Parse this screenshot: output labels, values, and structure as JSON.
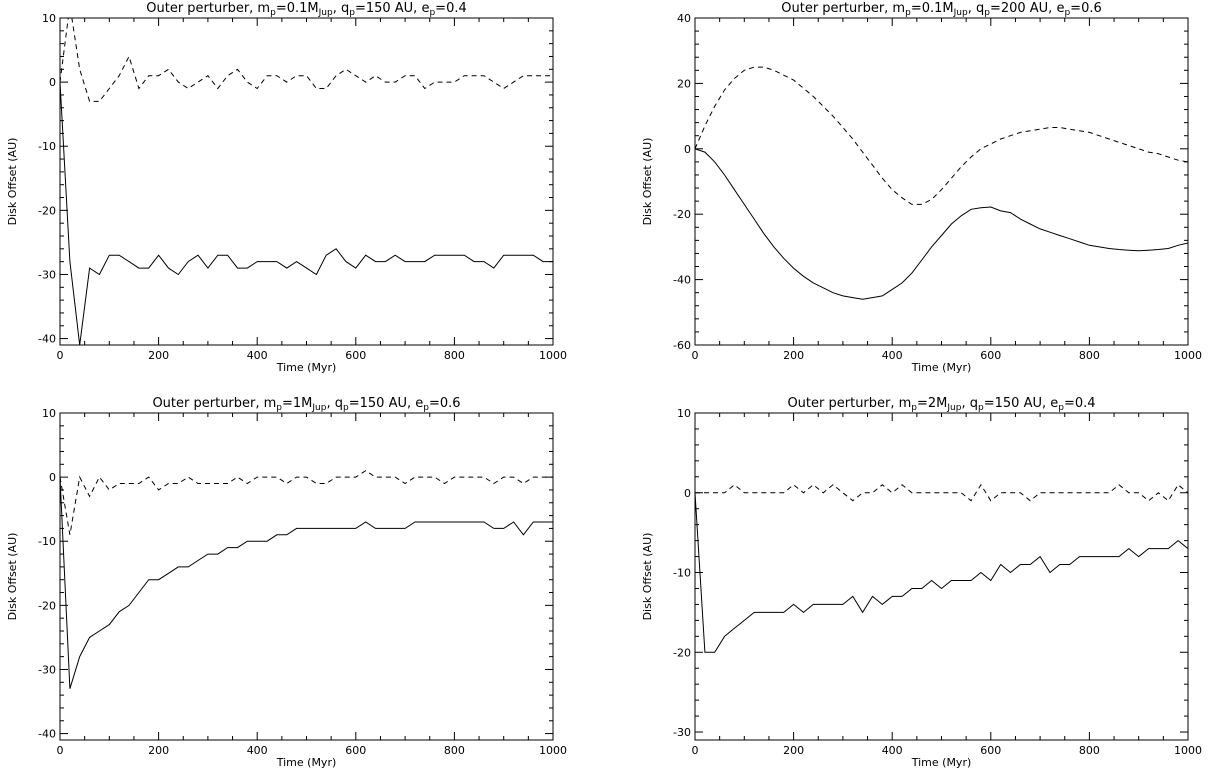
{
  "chart_data": [
    {
      "type": "line",
      "title": "Outer perturber, m_p=0.1M_Jup, q_p=150 AU, e_p=0.4",
      "title_parts": {
        "a": "Outer perturber, m",
        "b": "p",
        "c": "=0.1M",
        "d": "Jup",
        "e": ", q",
        "f": "p",
        "g": "=150 AU, e",
        "h": "p",
        "i": "=0.4"
      },
      "xlabel": "Time (Myr)",
      "ylabel": "Disk Offset (AU)",
      "xlim": [
        0,
        1000
      ],
      "ylim": [
        -41,
        10
      ],
      "xticks": [
        0,
        200,
        400,
        600,
        800,
        1000
      ],
      "yticks": [
        -40,
        -30,
        -20,
        -10,
        0,
        10
      ],
      "series": [
        {
          "style": "solid",
          "x": [
            0,
            20,
            40,
            60,
            80,
            100,
            120,
            140,
            160,
            180,
            200,
            220,
            240,
            260,
            280,
            300,
            320,
            340,
            360,
            380,
            400,
            420,
            440,
            460,
            480,
            500,
            520,
            540,
            560,
            580,
            600,
            620,
            640,
            660,
            680,
            700,
            720,
            740,
            760,
            780,
            800,
            820,
            840,
            860,
            880,
            900,
            920,
            940,
            960,
            980,
            1000
          ],
          "y": [
            0,
            -28,
            -41,
            -29,
            -30,
            -27,
            -27,
            -28,
            -29,
            -29,
            -27,
            -29,
            -30,
            -28,
            -27,
            -29,
            -27,
            -27,
            -29,
            -29,
            -28,
            -28,
            -28,
            -29,
            -28,
            -29,
            -30,
            -27,
            -26,
            -28,
            -29,
            -27,
            -28,
            -28,
            -27,
            -28,
            -28,
            -28,
            -27,
            -27,
            -27,
            -27,
            -28,
            -28,
            -29,
            -27,
            -27,
            -27,
            -27,
            -28,
            -28
          ]
        },
        {
          "style": "dashed",
          "x": [
            0,
            20,
            40,
            60,
            80,
            100,
            120,
            140,
            160,
            180,
            200,
            220,
            240,
            260,
            280,
            300,
            320,
            340,
            360,
            380,
            400,
            420,
            440,
            460,
            480,
            500,
            520,
            540,
            560,
            580,
            600,
            620,
            640,
            660,
            680,
            700,
            720,
            740,
            760,
            780,
            800,
            820,
            840,
            860,
            880,
            900,
            920,
            940,
            960,
            980,
            1000
          ],
          "y": [
            0,
            12,
            2,
            -3,
            -3,
            -1,
            1,
            4,
            -1,
            1,
            1,
            2,
            0,
            -1,
            0,
            1,
            -1,
            1,
            2,
            0,
            -1,
            1,
            1,
            0,
            1,
            1,
            -1,
            -1,
            1,
            2,
            1,
            0,
            1,
            0,
            0,
            1,
            1,
            -1,
            0,
            0,
            0,
            1,
            1,
            1,
            0,
            -1,
            0,
            1,
            1,
            1,
            1
          ]
        }
      ]
    },
    {
      "type": "line",
      "title": "Outer perturber, m_p=0.1M_Jup, q_p=200 AU, e_p=0.6",
      "title_parts": {
        "a": "Outer perturber, m",
        "b": "p",
        "c": "=0.1M",
        "d": "Jup",
        "e": ", q",
        "f": "p",
        "g": "=200 AU, e",
        "h": "p",
        "i": "=0.6"
      },
      "xlabel": "Time (Myr)",
      "ylabel": "Disk Offset (AU)",
      "xlim": [
        0,
        1000
      ],
      "ylim": [
        -60,
        40
      ],
      "xticks": [
        0,
        200,
        400,
        600,
        800,
        1000
      ],
      "yticks": [
        -60,
        -40,
        -20,
        0,
        20,
        40
      ],
      "series": [
        {
          "style": "solid",
          "x": [
            0,
            20,
            40,
            60,
            80,
            100,
            120,
            140,
            160,
            180,
            200,
            220,
            240,
            260,
            280,
            300,
            320,
            340,
            360,
            380,
            400,
            420,
            440,
            460,
            480,
            500,
            520,
            540,
            560,
            580,
            600,
            620,
            640,
            660,
            680,
            700,
            720,
            740,
            760,
            780,
            800,
            820,
            840,
            860,
            880,
            900,
            920,
            940,
            960,
            980,
            1000
          ],
          "y": [
            0,
            -1,
            -4,
            -8,
            -12.5,
            -17,
            -21.5,
            -26,
            -30,
            -33.5,
            -36.5,
            -39,
            -41,
            -42.5,
            -44,
            -45,
            -45.5,
            -46,
            -45.5,
            -45,
            -43,
            -41,
            -38,
            -34,
            -30,
            -26.5,
            -23,
            -20.5,
            -18.5,
            -18,
            -17.8,
            -19,
            -19.5,
            -21.5,
            -23,
            -24.5,
            -25.5,
            -26.5,
            -27.5,
            -28.5,
            -29.5,
            -30,
            -30.5,
            -30.8,
            -31,
            -31.2,
            -31,
            -30.8,
            -30.5,
            -29.5,
            -28.8
          ]
        },
        {
          "style": "dashed",
          "x": [
            0,
            20,
            40,
            60,
            80,
            100,
            120,
            140,
            160,
            180,
            200,
            220,
            240,
            260,
            280,
            300,
            320,
            340,
            360,
            380,
            400,
            420,
            440,
            460,
            480,
            500,
            520,
            540,
            560,
            580,
            600,
            620,
            640,
            660,
            680,
            700,
            720,
            740,
            760,
            780,
            800,
            820,
            840,
            860,
            880,
            900,
            920,
            940,
            960,
            980,
            1000
          ],
          "y": [
            0,
            7,
            13,
            18,
            21.5,
            24,
            25,
            25,
            24,
            22.5,
            21,
            18.5,
            16,
            13,
            10,
            6.5,
            3,
            -1,
            -5,
            -9,
            -12.5,
            -15,
            -17,
            -17,
            -15.5,
            -12.5,
            -9,
            -5.5,
            -2.5,
            0,
            1.5,
            3,
            4,
            5,
            5.5,
            6,
            6.5,
            6.5,
            6,
            5.5,
            5,
            4,
            3,
            2,
            1,
            0,
            -1,
            -1.5,
            -2.5,
            -3.5,
            -4
          ]
        }
      ]
    },
    {
      "type": "line",
      "title": "Outer perturber, m_p=1M_Jup, q_p=150 AU, e_p=0.6",
      "title_parts": {
        "a": "Outer perturber, m",
        "b": "p",
        "c": "=1M",
        "d": "Jup",
        "e": ", q",
        "f": "p",
        "g": "=150 AU, e",
        "h": "p",
        "i": "=0.6"
      },
      "xlabel": "Time (Myr)",
      "ylabel": "Disk Offset (AU)",
      "xlim": [
        0,
        1000
      ],
      "ylim": [
        -41,
        10
      ],
      "xticks": [
        0,
        200,
        400,
        600,
        800,
        1000
      ],
      "yticks": [
        -40,
        -30,
        -20,
        -10,
        0,
        10
      ],
      "series": [
        {
          "style": "solid",
          "x": [
            0,
            20,
            40,
            60,
            80,
            100,
            120,
            140,
            160,
            180,
            200,
            220,
            240,
            260,
            280,
            300,
            320,
            340,
            360,
            380,
            400,
            420,
            440,
            460,
            480,
            500,
            520,
            540,
            560,
            580,
            600,
            620,
            640,
            660,
            680,
            700,
            720,
            740,
            760,
            780,
            800,
            820,
            840,
            860,
            880,
            900,
            920,
            940,
            960,
            980,
            1000
          ],
          "y": [
            0,
            -33,
            -28,
            -25,
            -24,
            -23,
            -21,
            -20,
            -18,
            -16,
            -16,
            -15,
            -14,
            -14,
            -13,
            -12,
            -12,
            -11,
            -11,
            -10,
            -10,
            -10,
            -9,
            -9,
            -8,
            -8,
            -8,
            -8,
            -8,
            -8,
            -8,
            -7,
            -8,
            -8,
            -8,
            -8,
            -7,
            -7,
            -7,
            -7,
            -7,
            -7,
            -7,
            -7,
            -8,
            -8,
            -7,
            -9,
            -7,
            -7,
            -7
          ]
        },
        {
          "style": "dashed",
          "x": [
            0,
            20,
            40,
            60,
            80,
            100,
            120,
            140,
            160,
            180,
            200,
            220,
            240,
            260,
            280,
            300,
            320,
            340,
            360,
            380,
            400,
            420,
            440,
            460,
            480,
            500,
            520,
            540,
            560,
            580,
            600,
            620,
            640,
            660,
            680,
            700,
            720,
            740,
            760,
            780,
            800,
            820,
            840,
            860,
            880,
            900,
            920,
            940,
            960,
            980,
            1000
          ],
          "y": [
            0,
            -9,
            0,
            -3,
            0,
            -2,
            -1,
            -1,
            -1,
            0,
            -2,
            -1,
            -1,
            0,
            -1,
            -1,
            -1,
            -1,
            0,
            -1,
            0,
            0,
            0,
            -1,
            0,
            0,
            -1,
            -1,
            0,
            0,
            0,
            1,
            0,
            0,
            0,
            -1,
            0,
            0,
            0,
            -1,
            0,
            0,
            0,
            0,
            -1,
            0,
            0,
            -1,
            0,
            0,
            0
          ]
        }
      ]
    },
    {
      "type": "line",
      "title": "Outer perturber, m_p=2M_Jup, q_p=150 AU, e_p=0.4",
      "title_parts": {
        "a": "Outer perturber, m",
        "b": "p",
        "c": "=2M",
        "d": "Jup",
        "e": ", q",
        "f": "p",
        "g": "=150 AU, e",
        "h": "p",
        "i": "=0.4"
      },
      "xlabel": "Time (Myr)",
      "ylabel": "Disk Offset (AU)",
      "xlim": [
        0,
        1000
      ],
      "ylim": [
        -31,
        10
      ],
      "xticks": [
        0,
        200,
        400,
        600,
        800,
        1000
      ],
      "yticks": [
        -30,
        -20,
        -10,
        0,
        10
      ],
      "series": [
        {
          "style": "solid",
          "x": [
            0,
            20,
            40,
            60,
            80,
            100,
            120,
            140,
            160,
            180,
            200,
            220,
            240,
            260,
            280,
            300,
            320,
            340,
            360,
            380,
            400,
            420,
            440,
            460,
            480,
            500,
            520,
            540,
            560,
            580,
            600,
            620,
            640,
            660,
            680,
            700,
            720,
            740,
            760,
            780,
            800,
            820,
            840,
            860,
            880,
            900,
            920,
            940,
            960,
            980,
            1000
          ],
          "y": [
            0,
            -20,
            -20,
            -18,
            -17,
            -16,
            -15,
            -15,
            -15,
            -15,
            -14,
            -15,
            -14,
            -14,
            -14,
            -14,
            -13,
            -15,
            -13,
            -14,
            -13,
            -13,
            -12,
            -12,
            -11,
            -12,
            -11,
            -11,
            -11,
            -10,
            -11,
            -9,
            -10,
            -9,
            -9,
            -8,
            -10,
            -9,
            -9,
            -8,
            -8,
            -8,
            -8,
            -8,
            -7,
            -8,
            -7,
            -7,
            -7,
            -6,
            -7
          ]
        },
        {
          "style": "dashed",
          "x": [
            0,
            20,
            40,
            60,
            80,
            100,
            120,
            140,
            160,
            180,
            200,
            220,
            240,
            260,
            280,
            300,
            320,
            340,
            360,
            380,
            400,
            420,
            440,
            460,
            480,
            500,
            520,
            540,
            560,
            580,
            600,
            620,
            640,
            660,
            680,
            700,
            720,
            740,
            760,
            780,
            800,
            820,
            840,
            860,
            880,
            900,
            920,
            940,
            960,
            980,
            1000
          ],
          "y": [
            0,
            0,
            0,
            0,
            1,
            0,
            0,
            0,
            0,
            0,
            1,
            0,
            1,
            0,
            1,
            0,
            -1,
            0,
            0,
            1,
            0,
            1,
            0,
            0,
            0,
            0,
            0,
            0,
            -1,
            1,
            -1,
            0,
            0,
            0,
            -1,
            0,
            0,
            0,
            0,
            0,
            0,
            0,
            0,
            1,
            0,
            0,
            -1,
            0,
            -1,
            1,
            0
          ]
        }
      ]
    }
  ]
}
